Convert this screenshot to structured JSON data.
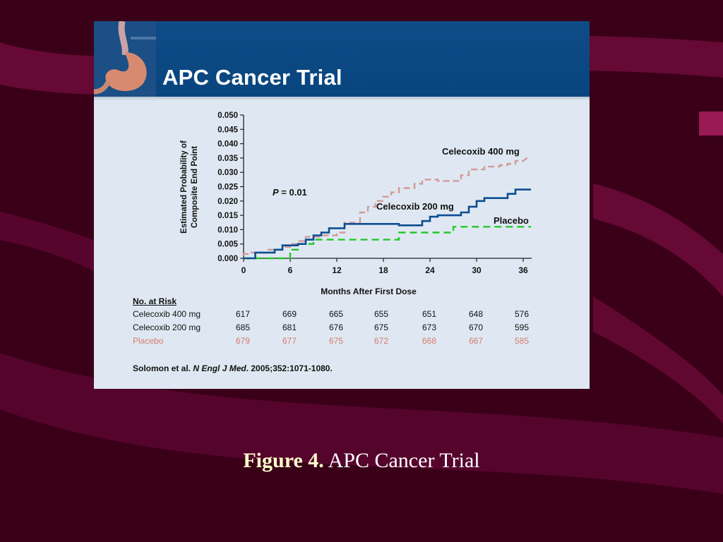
{
  "slide": {
    "title": "APC Cancer Trial",
    "citation_authors": "Solomon et al.",
    "citation_journal": "N Engl J Med",
    "citation_rest": ". 2005;352:1071-1080."
  },
  "caption": {
    "label": "Figure 4.",
    "text": " APC Cancer Trial"
  },
  "risk_table": {
    "heading": "No. at Risk",
    "rows": [
      {
        "name": "Celecoxib 400 mg",
        "values": [
          "617",
          "669",
          "665",
          "655",
          "651",
          "648",
          "576"
        ]
      },
      {
        "name": "Celecoxib 200 mg",
        "values": [
          "685",
          "681",
          "676",
          "675",
          "673",
          "670",
          "595"
        ]
      },
      {
        "name": "Placebo",
        "values": [
          "679",
          "677",
          "675",
          "672",
          "668",
          "667",
          "585"
        ]
      }
    ]
  },
  "chart_data": {
    "type": "line",
    "xlabel": "Months After First Dose",
    "ylabel_line1": "Estimated Probability of",
    "ylabel_line2": "Composite End Point",
    "x_ticks": [
      "0",
      "6",
      "12",
      "18",
      "24",
      "30",
      "36"
    ],
    "y_ticks": [
      "0.000",
      "0.005",
      "0.010",
      "0.015",
      "0.020",
      "0.025",
      "0.030",
      "0.035",
      "0.040",
      "0.045",
      "0.050"
    ],
    "xlim": [
      0,
      37
    ],
    "ylim": [
      0,
      0.05
    ],
    "annotation_p": "P",
    "annotation_p_value": " = 0.01",
    "series": [
      {
        "name": "Celecoxib 400 mg",
        "color": "#d29a98",
        "style": "dashed",
        "points": [
          [
            0,
            0.001
          ],
          [
            0,
            0.0015
          ],
          [
            1,
            0.0015
          ],
          [
            1,
            0.002
          ],
          [
            3,
            0.002
          ],
          [
            3,
            0.003
          ],
          [
            5,
            0.003
          ],
          [
            5,
            0.004
          ],
          [
            6,
            0.004
          ],
          [
            6,
            0.005
          ],
          [
            7,
            0.005
          ],
          [
            7,
            0.006
          ],
          [
            8,
            0.006
          ],
          [
            8,
            0.0075
          ],
          [
            10,
            0.0075
          ],
          [
            10,
            0.008
          ],
          [
            12,
            0.008
          ],
          [
            12,
            0.009
          ],
          [
            13,
            0.009
          ],
          [
            13,
            0.0125
          ],
          [
            15,
            0.0125
          ],
          [
            15,
            0.016
          ],
          [
            16,
            0.016
          ],
          [
            16,
            0.018
          ],
          [
            17,
            0.018
          ],
          [
            17,
            0.02
          ],
          [
            18,
            0.02
          ],
          [
            18,
            0.0215
          ],
          [
            19,
            0.0215
          ],
          [
            19,
            0.023
          ],
          [
            20,
            0.023
          ],
          [
            20,
            0.0245
          ],
          [
            22,
            0.0245
          ],
          [
            22,
            0.026
          ],
          [
            23,
            0.026
          ],
          [
            23,
            0.0275
          ],
          [
            25,
            0.0275
          ],
          [
            25,
            0.027
          ],
          [
            28,
            0.027
          ],
          [
            28,
            0.029
          ],
          [
            29,
            0.029
          ],
          [
            29,
            0.031
          ],
          [
            31,
            0.031
          ],
          [
            31,
            0.032
          ],
          [
            33,
            0.032
          ],
          [
            33,
            0.0325
          ],
          [
            34,
            0.0325
          ],
          [
            34,
            0.033
          ],
          [
            35,
            0.033
          ],
          [
            35,
            0.034
          ],
          [
            36,
            0.034
          ],
          [
            36.5,
            0.035
          ],
          [
            37,
            0.035
          ]
        ]
      },
      {
        "name": "Celecoxib 200 mg",
        "color": "#0d4d91",
        "style": "solid",
        "points": [
          [
            0,
            0
          ],
          [
            1.5,
            0
          ],
          [
            1.5,
            0.002
          ],
          [
            4,
            0.002
          ],
          [
            4,
            0.003
          ],
          [
            5,
            0.003
          ],
          [
            5,
            0.0045
          ],
          [
            7,
            0.0045
          ],
          [
            7,
            0.005
          ],
          [
            8,
            0.005
          ],
          [
            8,
            0.0065
          ],
          [
            9,
            0.0065
          ],
          [
            9,
            0.008
          ],
          [
            10,
            0.008
          ],
          [
            10,
            0.009
          ],
          [
            11,
            0.009
          ],
          [
            11,
            0.0105
          ],
          [
            13,
            0.0105
          ],
          [
            13,
            0.012
          ],
          [
            20,
            0.012
          ],
          [
            20,
            0.0115
          ],
          [
            23,
            0.0115
          ],
          [
            23,
            0.013
          ],
          [
            24,
            0.013
          ],
          [
            24,
            0.0145
          ],
          [
            25,
            0.0145
          ],
          [
            25,
            0.015
          ],
          [
            28,
            0.015
          ],
          [
            28,
            0.016
          ],
          [
            29,
            0.016
          ],
          [
            29,
            0.018
          ],
          [
            30,
            0.018
          ],
          [
            30,
            0.02
          ],
          [
            31,
            0.02
          ],
          [
            31,
            0.021
          ],
          [
            34,
            0.021
          ],
          [
            34,
            0.0225
          ],
          [
            35,
            0.0225
          ],
          [
            35,
            0.024
          ],
          [
            37,
            0.024
          ]
        ]
      },
      {
        "name": "Placebo",
        "color": "#22c82a",
        "style": "dashed",
        "points": [
          [
            0,
            0
          ],
          [
            6,
            0
          ],
          [
            6,
            0.003
          ],
          [
            7,
            0.003
          ],
          [
            7,
            0.005
          ],
          [
            9,
            0.005
          ],
          [
            9,
            0.0065
          ],
          [
            20,
            0.0065
          ],
          [
            20,
            0.009
          ],
          [
            27,
            0.009
          ],
          [
            27,
            0.011
          ],
          [
            37,
            0.011
          ]
        ]
      }
    ]
  }
}
